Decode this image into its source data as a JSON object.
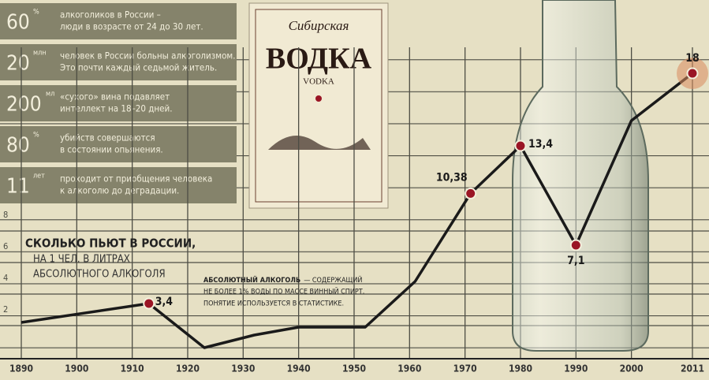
{
  "facts": [
    {
      "number": "60",
      "unit": "%",
      "lines": [
        "алкоголиков в России –",
        "люди в возрасте от 24 до 30 лет."
      ]
    },
    {
      "number": "20",
      "unit": "млн",
      "lines": [
        "человек в России больны алкоголизмом.",
        "Это почти каждый седьмой житель."
      ]
    },
    {
      "number": "200",
      "unit": "мл",
      "lines": [
        "«сухого» вина подавляет",
        "интеллект на 18–20 дней."
      ]
    },
    {
      "number": "80",
      "unit": "%",
      "lines": [
        "убийств совершаются",
        "в состоянии опьянения."
      ]
    },
    {
      "number": "11",
      "unit": "лет",
      "lines": [
        "проходит от приобщения человека",
        "к алкоголю до деградации."
      ]
    }
  ],
  "label": {
    "brand": "Сибирская",
    "name": "ВОДКА",
    "latin": "VODKA"
  },
  "chart_data": {
    "type": "line",
    "title": "СКОЛЬКО ПЬЮТ В РОССИИ,",
    "subtitle": [
      "НА 1 ЧЕЛ. В ЛИТРАХ",
      "АБСОЛЮТНОГО АЛКОГОЛЯ"
    ],
    "note": {
      "term": "АБСОЛЮТНЫЙ АЛКОГОЛЬ",
      "lines": [
        "— СОДЕРЖАЩИЙ",
        "НЕ БОЛЕЕ 1% ВОДЫ ПО МАССЕ ВИННЫЙ СПИРТ.",
        "ПОНЯТИЕ ИСПОЛЬЗУЕТСЯ В СТАТИСТИКЕ."
      ]
    },
    "x": [
      1890,
      1913,
      1923,
      1932,
      1940,
      1952,
      1961,
      1971,
      1980,
      1990,
      2000,
      2011
    ],
    "values": [
      2.2,
      3.4,
      0.6,
      1.4,
      1.9,
      1.9,
      4.8,
      10.38,
      13.4,
      7.1,
      15,
      18
    ],
    "value_labels": [
      null,
      "3,4",
      null,
      null,
      null,
      null,
      null,
      "10,38",
      "13,4",
      "7,1",
      null,
      "18"
    ],
    "color": "#1a1a1a",
    "marker_color": "#9a1525",
    "xlim": [
      1890,
      2011
    ],
    "xticks": [
      1890,
      1900,
      1910,
      1920,
      1930,
      1940,
      1950,
      1960,
      1970,
      1980,
      1990,
      2000,
      2011
    ],
    "ylim": [
      0,
      18
    ],
    "yticks": [
      2,
      4,
      6,
      8
    ],
    "grid": true
  }
}
